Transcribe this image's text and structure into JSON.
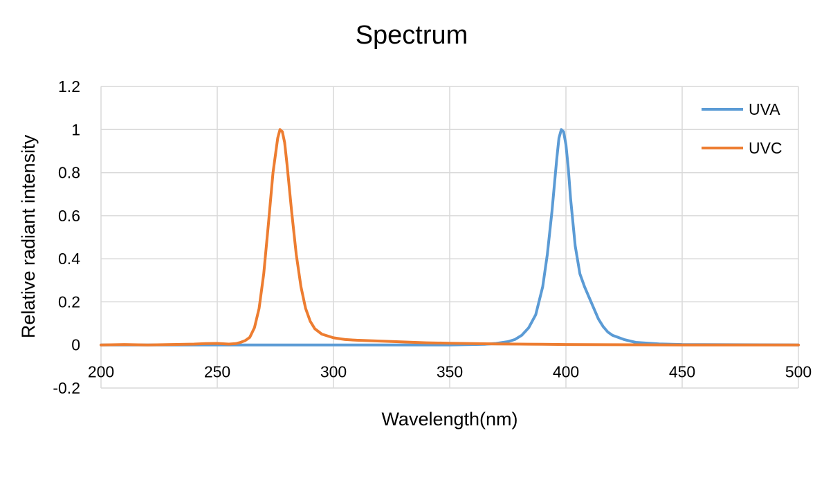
{
  "chart_data": {
    "type": "line",
    "title": "Spectrum",
    "xlabel": "Wavelength(nm)",
    "ylabel": "Relative radiant intensity",
    "xlim": [
      200,
      500
    ],
    "ylim": [
      -0.2,
      1.2
    ],
    "xticks": [
      200,
      250,
      300,
      350,
      400,
      450,
      500
    ],
    "yticks": [
      -0.2,
      0,
      0.2,
      0.4,
      0.6,
      0.8,
      1,
      1.2
    ],
    "ytick_labels": [
      "-0.2",
      "0",
      "0.2",
      "0.4",
      "0.6",
      "0.8",
      "1",
      "1.2"
    ],
    "grid": true,
    "legend": "top-right",
    "series": [
      {
        "name": "UVA",
        "color": "#5b9bd5",
        "x": [
          200,
          250,
          300,
          350,
          365,
          370,
          375,
          378,
          381,
          384,
          387,
          390,
          392,
          394,
          396,
          397,
          398,
          399,
          400,
          401,
          402,
          404,
          406,
          408,
          410,
          412,
          414,
          416,
          418,
          420,
          425,
          430,
          440,
          450,
          500
        ],
        "y": [
          0,
          0,
          0,
          0,
          0.003,
          0.007,
          0.015,
          0.025,
          0.045,
          0.08,
          0.14,
          0.27,
          0.42,
          0.62,
          0.86,
          0.96,
          1.0,
          0.99,
          0.93,
          0.82,
          0.68,
          0.46,
          0.33,
          0.27,
          0.22,
          0.17,
          0.12,
          0.085,
          0.06,
          0.045,
          0.025,
          0.012,
          0.005,
          0.002,
          0
        ]
      },
      {
        "name": "UVC",
        "color": "#ed7d31",
        "x": [
          200,
          210,
          220,
          230,
          240,
          245,
          250,
          255,
          258,
          260,
          262,
          264,
          266,
          268,
          270,
          272,
          274,
          276,
          277,
          278,
          279,
          280,
          282,
          284,
          286,
          288,
          290,
          292,
          295,
          300,
          305,
          310,
          320,
          330,
          340,
          350,
          360,
          370,
          380,
          390,
          400,
          420,
          450,
          500
        ],
        "y": [
          0,
          0.002,
          0,
          0.002,
          0.004,
          0.006,
          0.007,
          0.004,
          0.006,
          0.012,
          0.02,
          0.035,
          0.08,
          0.17,
          0.33,
          0.56,
          0.8,
          0.96,
          1.0,
          0.99,
          0.94,
          0.84,
          0.62,
          0.42,
          0.27,
          0.17,
          0.11,
          0.075,
          0.05,
          0.033,
          0.025,
          0.022,
          0.018,
          0.014,
          0.01,
          0.008,
          0.006,
          0.005,
          0.004,
          0.003,
          0.002,
          0.001,
          0,
          0
        ]
      }
    ]
  }
}
